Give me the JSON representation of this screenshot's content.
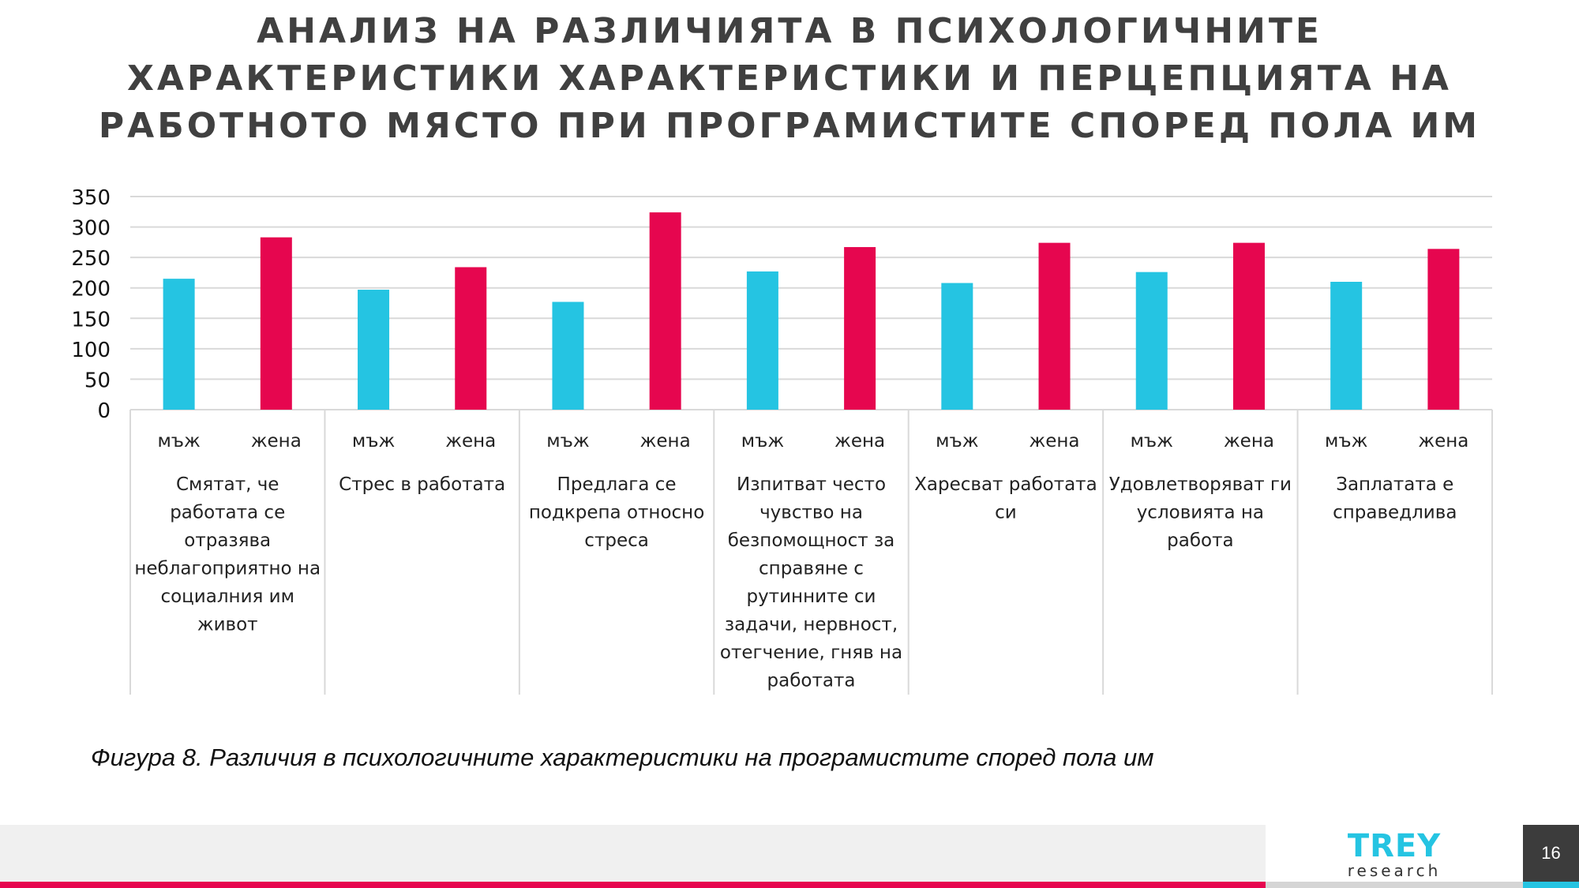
{
  "title": "АНАЛИЗ НА РАЗЛИЧИЯТА В ПСИХОЛОГИЧНИТЕ ХАРАКТЕРИСТИКИ ХАРАКТЕРИСТИКИ И ПЕРЦЕПЦИЯТА НА РАБОТНОТО МЯСТО ПРИ ПРОГРАМИСТИТЕ СПОРЕД ПОЛА ИМ",
  "title_lines": [
    "АНАЛИЗ НА РАЗЛИЧИЯТА В ПСИХОЛОГИЧНИТЕ",
    "ХАРАКТЕРИСТИКИ ХАРАКТЕРИСТИКИ И ПЕРЦЕПЦИЯТА НА",
    "РАБОТНОТО МЯСТО ПРИ ПРОГРАМИСТИТЕ СПОРЕД ПОЛА ИМ"
  ],
  "caption": "Фигура 8. Различия в психологичните характеристики на програмистите според пола им",
  "footer": {
    "logo_main": "TREY",
    "logo_sub": "research",
    "page_number": "16"
  },
  "colors": {
    "male": "#25c4e2",
    "female": "#e6064f",
    "accent_pink": "#e6064f",
    "accent_cyan": "#25c4e2"
  },
  "chart_data": {
    "type": "bar",
    "subcategories": [
      "мъж",
      "жена"
    ],
    "categories": [
      {
        "label_lines": [
          "Смятат, че",
          "работата се",
          "отразява",
          "неблагоприятно на",
          "социалния им",
          "живот"
        ],
        "values": [
          215,
          283
        ]
      },
      {
        "label_lines": [
          "Стрес в работата"
        ],
        "values": [
          197,
          234
        ]
      },
      {
        "label_lines": [
          "Предлага се",
          "подкрепа относно",
          "стреса"
        ],
        "values": [
          177,
          324
        ]
      },
      {
        "label_lines": [
          "Изпитват често",
          "чувство на",
          "безпомощност за",
          "справяне с",
          "рутинните си",
          "задачи, нервност,",
          "отегчение, гняв на",
          "работата"
        ],
        "values": [
          227,
          267
        ]
      },
      {
        "label_lines": [
          "Харесват работата",
          "си"
        ],
        "values": [
          208,
          274
        ]
      },
      {
        "label_lines": [
          "Удовлетворяват ги",
          "условията на",
          "работа"
        ],
        "values": [
          226,
          274
        ]
      },
      {
        "label_lines": [
          "Заплатата е",
          "справедлива"
        ],
        "values": [
          210,
          264
        ]
      }
    ],
    "yticks": [
      "0",
      "50",
      "100",
      "150",
      "200",
      "250",
      "300",
      "350"
    ],
    "ylim": [
      0,
      350
    ],
    "grid": true,
    "legend": "none"
  }
}
